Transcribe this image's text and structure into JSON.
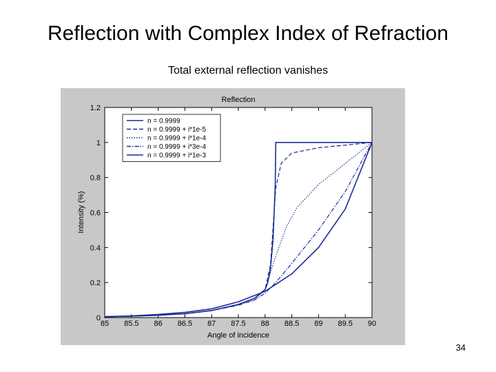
{
  "slide": {
    "title": "Reflection with Complex Index of Refraction",
    "subtitle": "Total external reflection vanishes",
    "page_number": "34"
  },
  "colors": {
    "line": "#1a2a99",
    "plot_bg": "#ffffff",
    "figure_bg": "#c8c8c8"
  },
  "chart_data": {
    "type": "line",
    "title": "Reflection",
    "xlabel": "Angle of incidence",
    "ylabel": "Intensity (%)",
    "xlim": [
      85,
      90
    ],
    "ylim": [
      0,
      1.2
    ],
    "xticks": [
      85,
      85.5,
      86,
      86.5,
      87,
      87.5,
      88,
      88.5,
      89,
      89.5,
      90
    ],
    "xtick_labels": [
      "85",
      "85.5",
      "86",
      "86.5",
      "87",
      "87.5",
      "88",
      "88.5",
      "89",
      "89.5",
      "90"
    ],
    "yticks": [
      0,
      0.2,
      0.4,
      0.6,
      0.8,
      1,
      1.2
    ],
    "ytick_labels": [
      "0",
      "0.2",
      "0.4",
      "0.6",
      "0.8",
      "1",
      "1.2"
    ],
    "grid": false,
    "legend_position": "top-left",
    "series": [
      {
        "name": "n = 0.9999",
        "dash": "solid",
        "x": [
          85,
          85.5,
          86,
          86.5,
          87,
          87.5,
          87.8,
          88,
          88.05,
          88.1,
          88.15,
          88.19,
          88.2,
          89,
          90
        ],
        "y": [
          0.005,
          0.008,
          0.013,
          0.022,
          0.04,
          0.075,
          0.11,
          0.16,
          0.2,
          0.28,
          0.45,
          0.75,
          1.0,
          1.0,
          1.0
        ]
      },
      {
        "name": "n = 0.9999 + i*1e-5",
        "dash": "dashed",
        "x": [
          85,
          85.5,
          86,
          86.5,
          87,
          87.5,
          87.8,
          88,
          88.1,
          88.2,
          88.3,
          88.5,
          89,
          89.5,
          90
        ],
        "y": [
          0.005,
          0.008,
          0.013,
          0.022,
          0.04,
          0.075,
          0.11,
          0.16,
          0.3,
          0.74,
          0.88,
          0.94,
          0.97,
          0.985,
          1.0
        ]
      },
      {
        "name": "n = 0.9999 + i*1e-4",
        "dash": "dotted",
        "x": [
          85,
          85.5,
          86,
          86.5,
          87,
          87.5,
          87.8,
          88,
          88.2,
          88.4,
          88.6,
          89,
          89.5,
          90
        ],
        "y": [
          0.005,
          0.008,
          0.013,
          0.022,
          0.04,
          0.075,
          0.1,
          0.16,
          0.35,
          0.52,
          0.63,
          0.76,
          0.88,
          1.0
        ]
      },
      {
        "name": "n = 0.9999 + i*3e-4",
        "dash": "dashdot",
        "x": [
          85,
          85.5,
          86,
          86.5,
          87,
          87.5,
          87.8,
          88,
          88.2,
          88.5,
          89,
          89.5,
          90
        ],
        "y": [
          0.005,
          0.008,
          0.013,
          0.022,
          0.04,
          0.07,
          0.1,
          0.14,
          0.2,
          0.31,
          0.5,
          0.72,
          1.0
        ]
      },
      {
        "name": "n = 0.9999 + i*1e-3",
        "dash": "solid",
        "x": [
          85,
          85.5,
          86,
          86.5,
          87,
          87.5,
          88,
          88.5,
          89,
          89.5,
          90
        ],
        "y": [
          0.005,
          0.01,
          0.018,
          0.03,
          0.05,
          0.09,
          0.15,
          0.25,
          0.4,
          0.62,
          1.0
        ]
      }
    ]
  }
}
